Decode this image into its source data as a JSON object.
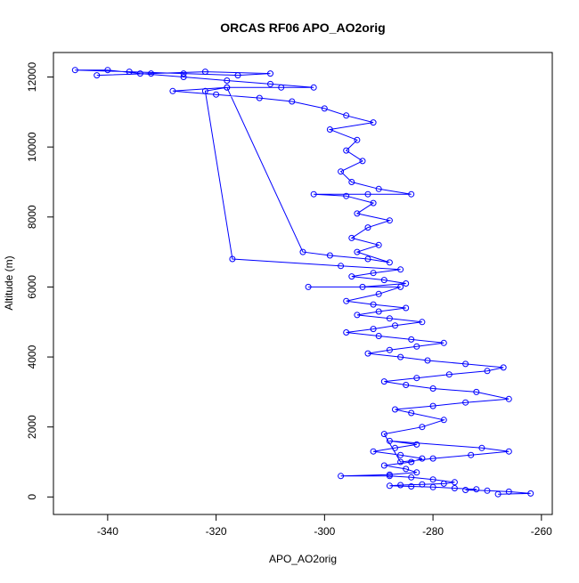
{
  "chart_data": {
    "type": "line",
    "title": "ORCAS RF06 APO_AO2orig",
    "xlabel": "APO_AO2orig",
    "ylabel": "Altitude (m)",
    "xlim": [
      -350,
      -258
    ],
    "ylim": [
      -500,
      12700
    ],
    "xticks": [
      -340,
      -320,
      -300,
      -280,
      -260
    ],
    "yticks": [
      0,
      2000,
      4000,
      6000,
      8000,
      10000,
      12000
    ],
    "markers": "open-circle",
    "grid": false,
    "legend": "none",
    "series": [
      {
        "color": "#0000ff",
        "points": [
          [
            -268,
            80
          ],
          [
            -262,
            100
          ],
          [
            -266,
            150
          ],
          [
            -270,
            180
          ],
          [
            -274,
            200
          ],
          [
            -272,
            220
          ],
          [
            -276,
            250
          ],
          [
            -280,
            280
          ],
          [
            -284,
            300
          ],
          [
            -288,
            320
          ],
          [
            -286,
            340
          ],
          [
            -282,
            360
          ],
          [
            -278,
            380
          ],
          [
            -276,
            420
          ],
          [
            -280,
            500
          ],
          [
            -284,
            560
          ],
          [
            -288,
            600
          ],
          [
            -297,
            600
          ],
          [
            -288,
            640
          ],
          [
            -283,
            700
          ],
          [
            -285,
            800
          ],
          [
            -289,
            900
          ],
          [
            -284,
            1000
          ],
          [
            -282,
            1100
          ],
          [
            -286,
            1200
          ],
          [
            -291,
            1300
          ],
          [
            -287,
            1400
          ],
          [
            -283,
            1500
          ],
          [
            -288,
            1600
          ],
          [
            -271,
            1400
          ],
          [
            -266,
            1300
          ],
          [
            -273,
            1200
          ],
          [
            -280,
            1100
          ],
          [
            -286,
            1000
          ],
          [
            -289,
            1800
          ],
          [
            -282,
            2000
          ],
          [
            -278,
            2200
          ],
          [
            -284,
            2400
          ],
          [
            -287,
            2500
          ],
          [
            -280,
            2600
          ],
          [
            -274,
            2700
          ],
          [
            -266,
            2800
          ],
          [
            -272,
            3000
          ],
          [
            -280,
            3100
          ],
          [
            -285,
            3200
          ],
          [
            -289,
            3300
          ],
          [
            -283,
            3400
          ],
          [
            -277,
            3500
          ],
          [
            -270,
            3600
          ],
          [
            -267,
            3700
          ],
          [
            -274,
            3800
          ],
          [
            -281,
            3900
          ],
          [
            -286,
            4000
          ],
          [
            -292,
            4100
          ],
          [
            -288,
            4200
          ],
          [
            -283,
            4300
          ],
          [
            -278,
            4400
          ],
          [
            -284,
            4500
          ],
          [
            -290,
            4600
          ],
          [
            -296,
            4700
          ],
          [
            -291,
            4800
          ],
          [
            -287,
            4900
          ],
          [
            -282,
            5000
          ],
          [
            -288,
            5100
          ],
          [
            -294,
            5200
          ],
          [
            -290,
            5300
          ],
          [
            -285,
            5400
          ],
          [
            -291,
            5500
          ],
          [
            -296,
            5600
          ],
          [
            -290,
            5800
          ],
          [
            -286,
            6000
          ],
          [
            -303,
            6000
          ],
          [
            -293,
            6000
          ],
          [
            -285,
            6100
          ],
          [
            -289,
            6200
          ],
          [
            -295,
            6300
          ],
          [
            -291,
            6400
          ],
          [
            -286,
            6500
          ],
          [
            -297,
            6600
          ],
          [
            -317,
            6800
          ],
          [
            -322,
            11600
          ],
          [
            -318,
            11700
          ],
          [
            -304,
            7000
          ],
          [
            -299,
            6900
          ],
          [
            -292,
            6800
          ],
          [
            -288,
            6700
          ],
          [
            -294,
            7000
          ],
          [
            -290,
            7200
          ],
          [
            -295,
            7400
          ],
          [
            -292,
            7700
          ],
          [
            -288,
            7900
          ],
          [
            -294,
            8100
          ],
          [
            -291,
            8400
          ],
          [
            -296,
            8600
          ],
          [
            -302,
            8650
          ],
          [
            -292,
            8650
          ],
          [
            -284,
            8650
          ],
          [
            -290,
            8800
          ],
          [
            -295,
            9000
          ],
          [
            -297,
            9300
          ],
          [
            -293,
            9600
          ],
          [
            -296,
            9900
          ],
          [
            -294,
            10200
          ],
          [
            -299,
            10500
          ],
          [
            -291,
            10700
          ],
          [
            -296,
            10900
          ],
          [
            -300,
            11100
          ],
          [
            -306,
            11300
          ],
          [
            -312,
            11400
          ],
          [
            -320,
            11500
          ],
          [
            -328,
            11600
          ],
          [
            -318,
            11700
          ],
          [
            -308,
            11700
          ],
          [
            -302,
            11700
          ],
          [
            -310,
            11800
          ],
          [
            -318,
            11900
          ],
          [
            -326,
            12000
          ],
          [
            -334,
            12100
          ],
          [
            -340,
            12200
          ],
          [
            -346,
            12200
          ],
          [
            -336,
            12150
          ],
          [
            -326,
            12100
          ],
          [
            -316,
            12050
          ],
          [
            -310,
            12100
          ],
          [
            -322,
            12150
          ],
          [
            -332,
            12100
          ],
          [
            -342,
            12050
          ]
        ]
      }
    ]
  }
}
